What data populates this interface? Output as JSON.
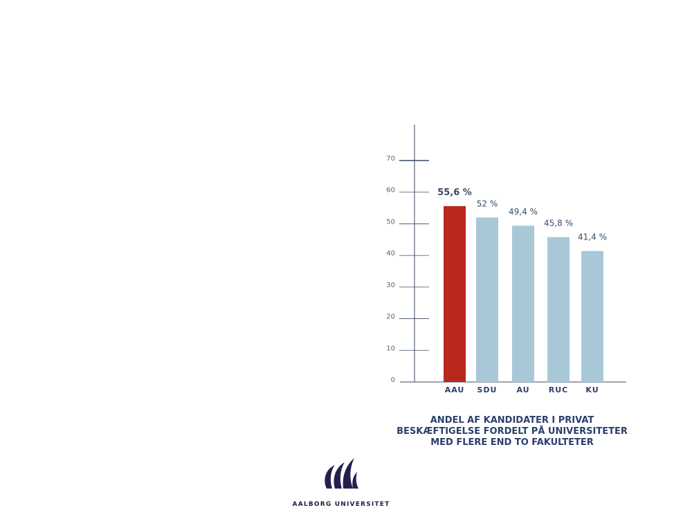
{
  "chart_data": {
    "type": "bar",
    "categories": [
      "AAU",
      "SDU",
      "AU",
      "RUC",
      "KU"
    ],
    "values": [
      55.6,
      52,
      49.4,
      45.8,
      41.4
    ],
    "value_labels": [
      "55,6 %",
      "52 %",
      "49,4 %",
      "45,8 %",
      "41,4 %"
    ],
    "highlight_index": 0,
    "ylim": [
      0,
      70
    ],
    "yticks": [
      0,
      10,
      20,
      30,
      40,
      50,
      60,
      70
    ],
    "ytick_labels": [
      "0",
      "10",
      "20",
      "30",
      "40",
      "50",
      "60",
      "70"
    ],
    "colors": {
      "highlight": "#b9271d",
      "bar": "#a8c8d8",
      "axis": "#3a4a63",
      "label": "#2b3f6b"
    },
    "caption_lines": [
      "ANDEL AF KANDIDATER I PRIVAT",
      "BESKÆFTIGELSE FORDELT PÅ UNIVERSITETER",
      "MED FLERE END TO FAKULTETER"
    ],
    "grid": false,
    "legend": "none"
  },
  "logo": {
    "text": "AALBORG UNIVERSITET",
    "icon": "aalborg-university-logo-icon"
  }
}
